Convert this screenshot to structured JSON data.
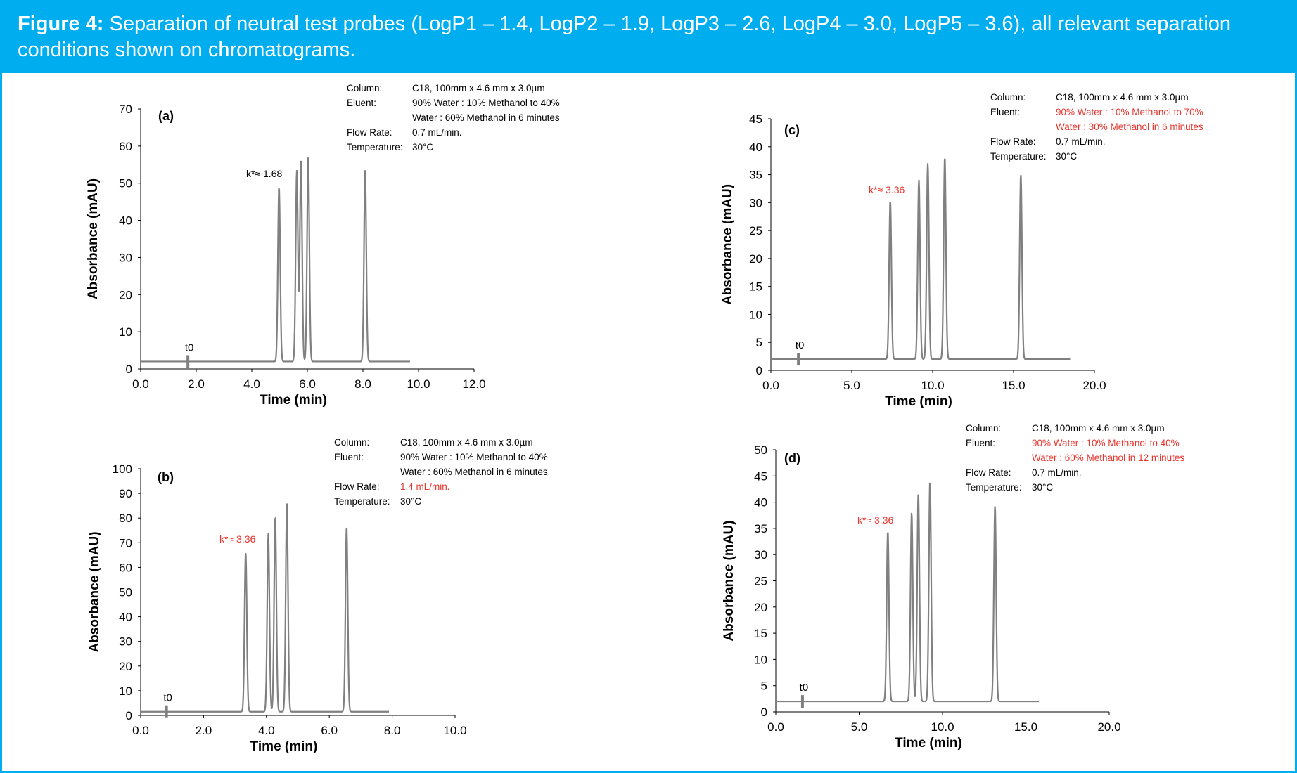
{
  "caption": {
    "label": "Figure 4:",
    "text": "Separation of neutral test probes (LogP1 – 1.4, LogP2 – 1.9, LogP3 – 2.6, LogP4 – 3.0, LogP5 – 3.6), all relevant separation conditions shown on chromatograms."
  },
  "colors": {
    "accent": "#00aeef",
    "trace": "#808080",
    "highlight": "#e8352e",
    "text": "#000000"
  },
  "chart_data": [
    {
      "id": "a",
      "type": "line",
      "panel_label": "(a)",
      "xlabel": "Time (min)",
      "ylabel": "Absorbance (mAU)",
      "xlim": [
        0,
        12
      ],
      "ylim": [
        0,
        70
      ],
      "xticks": [
        0,
        2,
        4,
        6,
        8,
        10,
        12
      ],
      "xtick_labels": [
        "0.0",
        "2.0",
        "4.0",
        "6.0",
        "8.0",
        "10.0",
        "12.0"
      ],
      "yticks": [
        0,
        10,
        20,
        30,
        40,
        50,
        60,
        70
      ],
      "ytick_labels": [
        "0",
        "10",
        "20",
        "30",
        "40",
        "50",
        "60",
        "70"
      ],
      "baseline": 2,
      "x_end": 9.7,
      "t0_time": 1.7,
      "peaks": [
        {
          "t": 4.98,
          "h": 49
        },
        {
          "t": 5.62,
          "h": 53.3
        },
        {
          "t": 5.77,
          "h": 55.9
        },
        {
          "t": 6.03,
          "h": 57.1
        },
        {
          "t": 8.08,
          "h": 53.6
        }
      ],
      "annotations": {
        "t0": "t0",
        "k_value": "k*≈ 1.68",
        "k_highlight": false
      },
      "conditions": [
        {
          "label": "Column:",
          "lines": [
            "C18, 100mm x 4.6 mm x 3.0µm"
          ],
          "highlight": false
        },
        {
          "label": "Eluent:",
          "lines": [
            "90% Water : 10% Methanol to 40%",
            "Water : 60% Methanol in 6 minutes"
          ],
          "highlight": false
        },
        {
          "label": "Flow Rate:",
          "lines": [
            "0.7 mL/min."
          ],
          "highlight": false
        },
        {
          "label": "Temperature:",
          "lines": [
            "30°C"
          ],
          "highlight": false
        }
      ]
    },
    {
      "id": "b",
      "type": "line",
      "panel_label": "(b)",
      "xlabel": "Time (min)",
      "ylabel": "Absorbance (mAU)",
      "xlim": [
        0,
        10
      ],
      "ylim": [
        0,
        100
      ],
      "xticks": [
        0,
        2,
        4,
        6,
        8,
        10
      ],
      "xtick_labels": [
        "0.0",
        "2.0",
        "4.0",
        "6.0",
        "8.0",
        "10.0"
      ],
      "yticks": [
        0,
        10,
        20,
        30,
        40,
        50,
        60,
        70,
        80,
        90,
        100
      ],
      "ytick_labels": [
        "0",
        "10",
        "20",
        "30",
        "40",
        "50",
        "60",
        "70",
        "80",
        "90",
        "100"
      ],
      "baseline": 1.5,
      "x_end": 7.9,
      "t0_time": 0.82,
      "peaks": [
        {
          "t": 3.34,
          "h": 66
        },
        {
          "t": 4.06,
          "h": 73.5
        },
        {
          "t": 4.28,
          "h": 80.5
        },
        {
          "t": 4.65,
          "h": 86
        },
        {
          "t": 6.55,
          "h": 76.5
        }
      ],
      "annotations": {
        "t0": "t0",
        "k_value": "k*≈ 3.36",
        "k_highlight": true
      },
      "conditions": [
        {
          "label": "Column:",
          "lines": [
            "C18, 100mm x 4.6 mm x 3.0µm"
          ],
          "highlight": false
        },
        {
          "label": "Eluent:",
          "lines": [
            "90% Water : 10% Methanol to 40%",
            "Water : 60% Methanol in 6 minutes"
          ],
          "highlight": false
        },
        {
          "label": "Flow Rate:",
          "lines": [
            "1.4 mL/min."
          ],
          "highlight": true
        },
        {
          "label": "Temperature:",
          "lines": [
            "30°C"
          ],
          "highlight": false
        }
      ]
    },
    {
      "id": "c",
      "type": "line",
      "panel_label": "(c)",
      "xlabel": "Time (min)",
      "ylabel": "Absorbance (mAU)",
      "xlim": [
        0,
        20
      ],
      "ylim": [
        0,
        45
      ],
      "xticks": [
        0,
        5,
        10,
        15,
        20
      ],
      "xtick_labels": [
        "0.0",
        "5.0",
        "10.0",
        "15.0",
        "20.0"
      ],
      "yticks": [
        0,
        5,
        10,
        15,
        20,
        25,
        30,
        35,
        40,
        45
      ],
      "ytick_labels": [
        "0",
        "5",
        "10",
        "15",
        "20",
        "25",
        "30",
        "35",
        "40",
        "45"
      ],
      "baseline": 2,
      "x_end": 18.5,
      "t0_time": 1.7,
      "peaks": [
        {
          "t": 7.38,
          "h": 30.3
        },
        {
          "t": 9.15,
          "h": 34
        },
        {
          "t": 9.7,
          "h": 37
        },
        {
          "t": 10.75,
          "h": 38.2
        },
        {
          "t": 15.45,
          "h": 35
        }
      ],
      "annotations": {
        "t0": "t0",
        "k_value": "k*≈ 3.36",
        "k_highlight": true
      },
      "conditions": [
        {
          "label": "Column:",
          "lines": [
            "C18, 100mm x 4.6 mm x 3.0µm"
          ],
          "highlight": false
        },
        {
          "label": "Eluent:",
          "lines": [
            "90% Water : 10% Methanol to 70%",
            "Water : 30% Methanol in 6 minutes"
          ],
          "highlight": true
        },
        {
          "label": "Flow Rate:",
          "lines": [
            "0.7 mL/min."
          ],
          "highlight": false
        },
        {
          "label": "Temperature:",
          "lines": [
            "30°C"
          ],
          "highlight": false
        }
      ]
    },
    {
      "id": "d",
      "type": "line",
      "panel_label": "(d)",
      "xlabel": "Time (min)",
      "ylabel": "Absorbance (mAU)",
      "xlim": [
        0,
        20
      ],
      "ylim": [
        0,
        50
      ],
      "xticks": [
        0,
        5,
        10,
        15,
        20
      ],
      "xtick_labels": [
        "0.0",
        "5.0",
        "10.0",
        "15.0",
        "20.0"
      ],
      "yticks": [
        0,
        5,
        10,
        15,
        20,
        25,
        30,
        35,
        40,
        45,
        50
      ],
      "ytick_labels": [
        "0",
        "5",
        "10",
        "15",
        "20",
        "25",
        "30",
        "35",
        "40",
        "45",
        "50"
      ],
      "baseline": 2,
      "x_end": 15.8,
      "t0_time": 1.6,
      "peaks": [
        {
          "t": 6.72,
          "h": 34.5
        },
        {
          "t": 8.15,
          "h": 38
        },
        {
          "t": 8.55,
          "h": 41.5
        },
        {
          "t": 9.25,
          "h": 44
        },
        {
          "t": 13.15,
          "h": 39.3
        }
      ],
      "annotations": {
        "t0": "t0",
        "k_value": "k*≈ 3.36",
        "k_highlight": true
      },
      "conditions": [
        {
          "label": "Column:",
          "lines": [
            "C18, 100mm x 4.6 mm x 3.0µm"
          ],
          "highlight": false
        },
        {
          "label": "Eluent:",
          "lines": [
            "90% Water : 10% Methanol to 40%",
            "Water : 60% Methanol in 12 minutes"
          ],
          "highlight": true
        },
        {
          "label": "Flow Rate:",
          "lines": [
            "0.7 mL/min."
          ],
          "highlight": false
        },
        {
          "label": "Temperature:",
          "lines": [
            "30°C"
          ],
          "highlight": false
        }
      ]
    }
  ]
}
